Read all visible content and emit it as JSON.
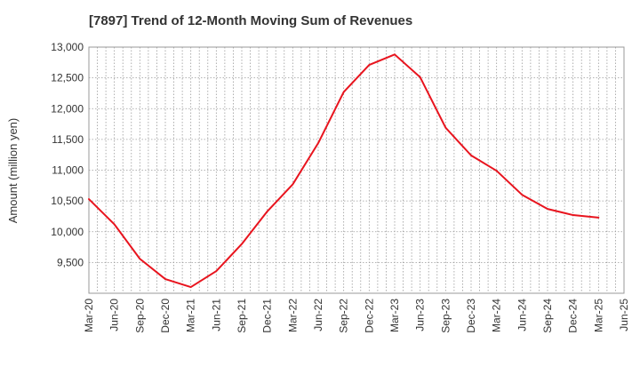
{
  "chart_data": {
    "type": "line",
    "title": "[7897]  Trend of 12-Month Moving Sum of Revenues",
    "xlabel": "",
    "ylabel": "Amount (million yen)",
    "ylim": [
      9000,
      13000
    ],
    "y_ticks": [
      {
        "value": 9500,
        "label": "9,500"
      },
      {
        "value": 10000,
        "label": "10,000"
      },
      {
        "value": 10500,
        "label": "10,500"
      },
      {
        "value": 11000,
        "label": "11,000"
      },
      {
        "value": 11500,
        "label": "11,500"
      },
      {
        "value": 12000,
        "label": "12,000"
      },
      {
        "value": 12500,
        "label": "12,500"
      },
      {
        "value": 13000,
        "label": "13,000"
      }
    ],
    "x_tick_labels": [
      "Mar-20",
      "Jun-20",
      "Sep-20",
      "Dec-20",
      "Mar-21",
      "Jun-21",
      "Sep-21",
      "Dec-21",
      "Mar-22",
      "Jun-22",
      "Sep-22",
      "Dec-22",
      "Mar-23",
      "Jun-23",
      "Sep-23",
      "Dec-23",
      "Mar-24",
      "Jun-24",
      "Sep-24",
      "Dec-24",
      "Mar-25",
      "Jun-25"
    ],
    "grid": true,
    "series": [
      {
        "color": "#e8141e",
        "x": [
          "Mar-20",
          "Jun-20",
          "Sep-20",
          "Dec-20",
          "Mar-21",
          "Jun-21",
          "Sep-21",
          "Dec-21",
          "Mar-22",
          "Jun-22",
          "Sep-22",
          "Dec-22",
          "Mar-23",
          "Jun-23",
          "Sep-23",
          "Dec-23",
          "Mar-24",
          "Jun-24",
          "Sep-24",
          "Dec-24",
          "Mar-25"
        ],
        "values": [
          10530,
          10120,
          9560,
          9230,
          9100,
          9360,
          9800,
          10330,
          10770,
          11440,
          12270,
          12710,
          12880,
          12510,
          11690,
          11240,
          10990,
          10600,
          10370,
          10270,
          10230
        ]
      }
    ]
  }
}
